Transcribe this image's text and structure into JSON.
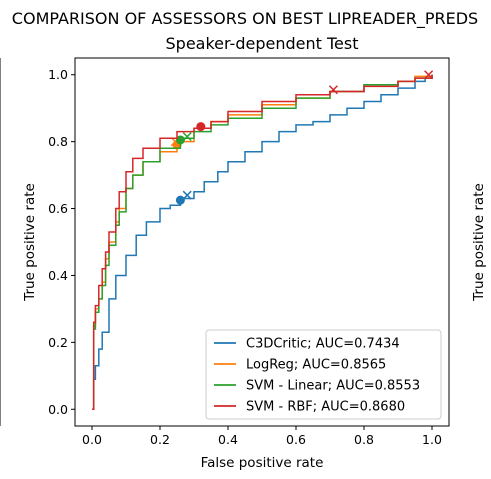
{
  "figure": {
    "suptitle": "COMPARISON OF ASSESSORS ON BEST LIPREADER_PREDS",
    "right_ylabel": "True positive rate"
  },
  "chart_data": {
    "type": "line",
    "title": "Speaker-dependent Test",
    "xlabel": "False positive rate",
    "ylabel": "True positive rate",
    "xlim": [
      -0.05,
      1.05
    ],
    "ylim": [
      -0.05,
      1.05
    ],
    "xticks": [
      "0.0",
      "0.2",
      "0.4",
      "0.6",
      "0.8",
      "1.0"
    ],
    "yticks": [
      "0.0",
      "0.2",
      "0.4",
      "0.6",
      "0.8",
      "1.0"
    ],
    "grid": false,
    "legend_position": "lower-right",
    "series": [
      {
        "name": "C3DCritic; AUC=0.7434",
        "color": "#1f77b4",
        "x": [
          0,
          0.005,
          0.01,
          0.02,
          0.03,
          0.05,
          0.07,
          0.1,
          0.13,
          0.16,
          0.2,
          0.23,
          0.26,
          0.3,
          0.33,
          0.37,
          0.4,
          0.45,
          0.5,
          0.55,
          0.6,
          0.65,
          0.7,
          0.75,
          0.8,
          0.85,
          0.9,
          0.95,
          0.98,
          1.0
        ],
        "y": [
          0,
          0.09,
          0.13,
          0.18,
          0.23,
          0.33,
          0.4,
          0.46,
          0.52,
          0.56,
          0.6,
          0.61,
          0.63,
          0.65,
          0.68,
          0.71,
          0.74,
          0.77,
          0.8,
          0.83,
          0.85,
          0.86,
          0.88,
          0.9,
          0.92,
          0.94,
          0.96,
          0.98,
          0.99,
          1.0
        ],
        "markers": {
          "dot": [
            0.26,
            0.625
          ],
          "x": [
            0.28,
            0.64
          ]
        }
      },
      {
        "name": "LogReg; AUC=0.8565",
        "color": "#ff7f0e",
        "x": [
          0,
          0.005,
          0.01,
          0.02,
          0.03,
          0.04,
          0.05,
          0.07,
          0.08,
          0.1,
          0.12,
          0.15,
          0.2,
          0.25,
          0.3,
          0.35,
          0.4,
          0.5,
          0.6,
          0.7,
          0.8,
          0.9,
          0.95,
          1.0
        ],
        "y": [
          0,
          0.25,
          0.3,
          0.33,
          0.38,
          0.45,
          0.5,
          0.56,
          0.6,
          0.66,
          0.7,
          0.74,
          0.77,
          0.8,
          0.84,
          0.86,
          0.88,
          0.91,
          0.93,
          0.95,
          0.97,
          0.98,
          0.995,
          1.0
        ],
        "markers": {
          "dot": [
            0.25,
            0.79
          ],
          "x": [
            0.245,
            0.8
          ]
        }
      },
      {
        "name": "SVM - Linear; AUC=0.8553",
        "color": "#2ca02c",
        "x": [
          0,
          0.005,
          0.01,
          0.02,
          0.03,
          0.04,
          0.05,
          0.07,
          0.08,
          0.1,
          0.12,
          0.15,
          0.2,
          0.26,
          0.3,
          0.35,
          0.4,
          0.5,
          0.6,
          0.7,
          0.8,
          0.9,
          0.95,
          1.0
        ],
        "y": [
          0,
          0.24,
          0.29,
          0.33,
          0.37,
          0.43,
          0.49,
          0.55,
          0.59,
          0.66,
          0.7,
          0.74,
          0.78,
          0.81,
          0.83,
          0.85,
          0.87,
          0.9,
          0.93,
          0.95,
          0.97,
          0.98,
          0.99,
          1.0
        ],
        "markers": {
          "dot": [
            0.26,
            0.805
          ],
          "x": [
            0.28,
            0.815
          ]
        }
      },
      {
        "name": "SVM - RBF; AUC=0.8680",
        "color": "#d62728",
        "x": [
          0,
          0.005,
          0.01,
          0.02,
          0.03,
          0.04,
          0.05,
          0.07,
          0.08,
          0.1,
          0.12,
          0.15,
          0.2,
          0.25,
          0.3,
          0.35,
          0.4,
          0.5,
          0.6,
          0.7,
          0.8,
          0.9,
          0.95,
          1.0
        ],
        "y": [
          0,
          0.26,
          0.31,
          0.37,
          0.42,
          0.47,
          0.53,
          0.6,
          0.65,
          0.71,
          0.75,
          0.78,
          0.81,
          0.83,
          0.84,
          0.86,
          0.89,
          0.92,
          0.94,
          0.95,
          0.965,
          0.98,
          0.99,
          1.0
        ],
        "markers": {
          "dot": [
            0.32,
            0.845
          ],
          "x_list": [
            [
              0.71,
              0.955
            ],
            [
              0.99,
              1.0
            ]
          ]
        }
      }
    ]
  }
}
